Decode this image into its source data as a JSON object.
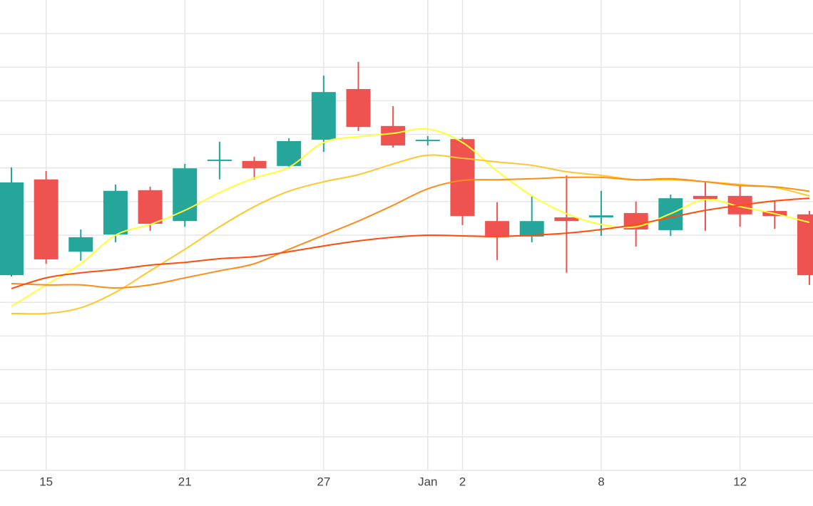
{
  "chart_data": {
    "type": "candlestick",
    "categories": [
      null,
      "15",
      null,
      null,
      null,
      "21",
      null,
      null,
      null,
      "27",
      null,
      null,
      "Jan",
      "2",
      null,
      null,
      null,
      "8",
      null,
      null,
      null,
      "12",
      null,
      null
    ],
    "open": [
      5.81,
      8.66,
      6.51,
      7.02,
      8.34,
      7.42,
      9.21,
      9.21,
      9.06,
      9.84,
      11.35,
      10.25,
      9.8,
      9.86,
      7.42,
      6.96,
      7.53,
      7.53,
      7.66,
      7.15,
      8.17,
      8.17,
      7.72,
      7.62
    ],
    "high": [
      9.02,
      8.91,
      7.17,
      8.51,
      8.44,
      9.12,
      9.78,
      9.33,
      9.89,
      11.75,
      12.16,
      10.84,
      9.95,
      9.91,
      7.98,
      8.15,
      8.78,
      8.32,
      8.0,
      8.21,
      8.59,
      8.46,
      8.04,
      7.72
    ],
    "low": [
      5.77,
      6.15,
      6.24,
      6.79,
      7.13,
      7.25,
      8.66,
      8.66,
      8.99,
      9.48,
      10.1,
      9.61,
      9.67,
      7.3,
      6.26,
      6.79,
      5.88,
      6.98,
      6.66,
      6.98,
      7.13,
      7.25,
      7.19,
      5.52
    ],
    "close": [
      8.57,
      6.28,
      6.94,
      8.32,
      7.34,
      8.99,
      9.25,
      8.99,
      9.8,
      11.26,
      10.22,
      9.67,
      9.84,
      7.57,
      6.94,
      7.42,
      7.42,
      7.59,
      7.17,
      8.1,
      8.08,
      7.62,
      7.57,
      5.81
    ],
    "increasing_color": "#26a69a",
    "decreasing_color": "#ef5350",
    "series": [
      {
        "color": "#ffff33",
        "values": [
          4.88,
          5.52,
          6.15,
          7.0,
          7.32,
          7.74,
          8.27,
          8.7,
          9.02,
          9.76,
          9.93,
          10.03,
          10.16,
          9.76,
          8.91,
          8.17,
          7.64,
          7.32,
          7.25,
          7.64,
          8.06,
          7.85,
          7.64,
          7.38
        ]
      },
      {
        "color": "#ffc72c",
        "values": [
          4.67,
          4.67,
          4.84,
          5.3,
          5.94,
          6.58,
          7.25,
          7.85,
          8.31,
          8.59,
          8.8,
          9.12,
          9.38,
          9.29,
          9.18,
          9.08,
          8.89,
          8.78,
          8.65,
          8.65,
          8.59,
          8.51,
          8.42,
          8.17
        ]
      },
      {
        "color": "#ff8c1a",
        "values": [
          5.56,
          5.52,
          5.52,
          5.43,
          5.52,
          5.73,
          5.94,
          6.15,
          6.58,
          7.0,
          7.42,
          7.89,
          8.38,
          8.63,
          8.65,
          8.68,
          8.72,
          8.72,
          8.65,
          8.68,
          8.59,
          8.48,
          8.44,
          8.31
        ]
      },
      {
        "color": "#ff4d0d",
        "values": [
          5.41,
          5.73,
          5.88,
          5.98,
          6.11,
          6.19,
          6.3,
          6.36,
          6.51,
          6.68,
          6.83,
          6.94,
          7.0,
          6.98,
          6.96,
          7.0,
          7.06,
          7.17,
          7.32,
          7.53,
          7.74,
          7.89,
          8.02,
          8.1
        ]
      }
    ],
    "ylim": [
      0,
      14
    ],
    "yticks": [
      0,
      1,
      2,
      3,
      4,
      5,
      6,
      7,
      8,
      9,
      10,
      11,
      12,
      13
    ],
    "y_tick_labels": false,
    "grid": true
  }
}
